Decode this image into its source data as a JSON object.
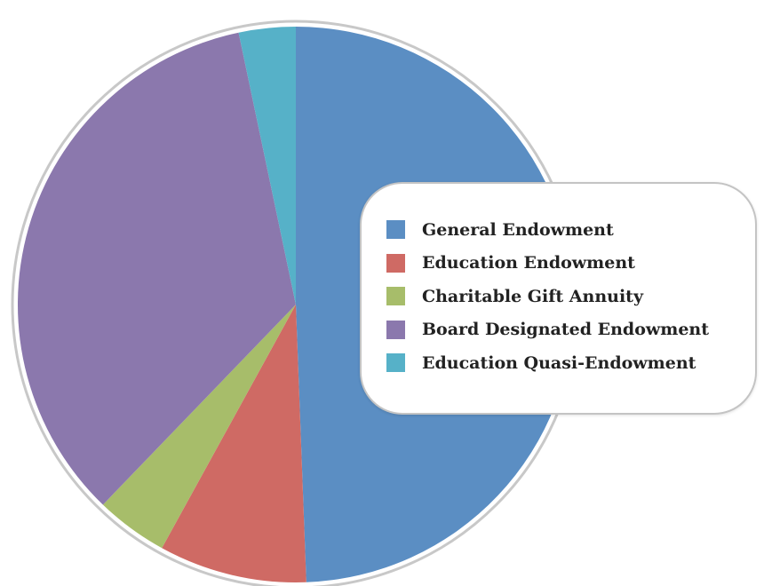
{
  "chart_data": {
    "type": "pie",
    "title": "",
    "start_angle_deg": 0,
    "direction": "clockwise",
    "legend_position": "right",
    "categories": [
      "General Endowment",
      "Education Endowment",
      "Charitable Gift Annuity",
      "Board Designated Endowment",
      "Education Quasi-Endowment"
    ],
    "values": [
      49.4,
      8.6,
      4.2,
      34.5,
      3.3
    ],
    "colors": [
      "#5b8ec3",
      "#cf6a64",
      "#a7bd6a",
      "#8b78ad",
      "#56b1c8"
    ],
    "border_color": "#c8c8c8"
  }
}
